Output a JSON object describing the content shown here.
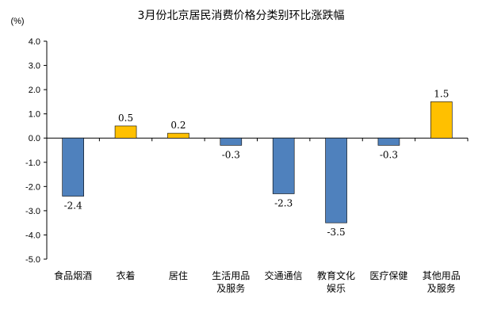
{
  "chart_data": {
    "type": "bar",
    "title": "3月份北京居民消费价格分类别环比涨跌幅",
    "ylabel": "(%)",
    "xlabel": "",
    "ylim": [
      -5.0,
      4.0
    ],
    "yticks": [
      "4.0",
      "3.0",
      "2.0",
      "1.0",
      "0.0",
      "-1.0",
      "-2.0",
      "-3.0",
      "-4.0",
      "-5.0"
    ],
    "categories": [
      [
        "食品烟酒"
      ],
      [
        "衣着"
      ],
      [
        "居住"
      ],
      [
        "生活用品",
        "及服务"
      ],
      [
        "交通通信"
      ],
      [
        "教育文化",
        "娱乐"
      ],
      [
        "医疗保健"
      ],
      [
        "其他用品",
        "及服务"
      ]
    ],
    "values": [
      -2.4,
      0.5,
      0.2,
      -0.3,
      -2.3,
      -3.5,
      -0.3,
      1.5
    ],
    "data_labels": [
      "-2.4",
      "0.5",
      "0.2",
      "-0.3",
      "-2.3",
      "-3.5",
      "-0.3",
      "1.5"
    ],
    "grid": false,
    "legend": "none",
    "colors": {
      "negative": "#4F81BD",
      "positive": "#FFC000",
      "bar_edge": "#000000",
      "axis": "#000000"
    }
  }
}
